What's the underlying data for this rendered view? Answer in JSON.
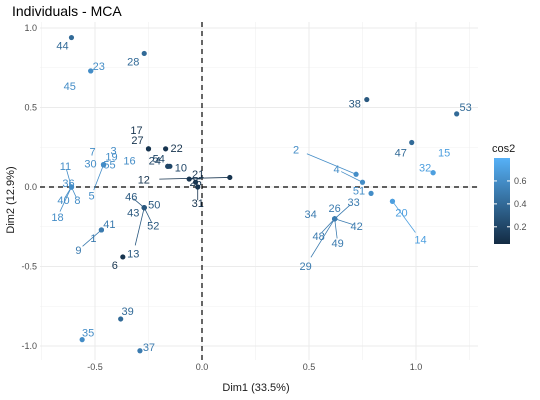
{
  "chart_data": {
    "type": "scatter",
    "title": "Individuals - MCA",
    "xlabel": "Dim1 (33.5%)",
    "ylabel": "Dim2 (12.9%)",
    "xlim": [
      -0.7,
      1.2
    ],
    "ylim": [
      -1.05,
      1.0
    ],
    "xticks": [
      -0.5,
      0.0,
      0.5,
      1.0
    ],
    "xtick_labels": [
      "-0.5",
      "0.0",
      "0.5",
      "1.0"
    ],
    "yticks": [
      -1.0,
      -0.5,
      0.0,
      0.5,
      1.0
    ],
    "ytick_labels": [
      "-1.0",
      "-0.5",
      "0.0",
      "0.5",
      "1.0"
    ],
    "grid": true,
    "reference_lines": {
      "x": 0,
      "y": 0,
      "style": "dashed"
    },
    "legend": {
      "title": "cos2",
      "placement": "right",
      "scale": [
        0.05,
        0.8
      ],
      "ticks": [
        0.2,
        0.4,
        0.6
      ],
      "tick_labels": [
        "0.2",
        "0.4",
        "0.6"
      ],
      "low_color": "#132B43",
      "high_color": "#56B1F7"
    },
    "points": [
      {
        "label": "1",
        "x": -0.47,
        "y": -0.27,
        "cos2": 0.5
      },
      {
        "label": "2",
        "x": 0.72,
        "y": 0.08,
        "cos2": 0.6
      },
      {
        "label": "3",
        "x": -0.46,
        "y": 0.14,
        "cos2": 0.6
      },
      {
        "label": "4",
        "x": 0.75,
        "y": 0.03,
        "cos2": 0.6
      },
      {
        "label": "5",
        "x": -0.46,
        "y": 0.14,
        "cos2": 0.6
      },
      {
        "label": "6",
        "x": -0.37,
        "y": -0.44,
        "cos2": 0.1
      },
      {
        "label": "7",
        "x": -0.46,
        "y": 0.14,
        "cos2": 0.6
      },
      {
        "label": "8",
        "x": -0.61,
        "y": 0.0,
        "cos2": 0.6
      },
      {
        "label": "9",
        "x": -0.47,
        "y": -0.27,
        "cos2": 0.5
      },
      {
        "label": "10",
        "x": -0.15,
        "y": 0.13,
        "cos2": 0.2
      },
      {
        "label": "11",
        "x": -0.61,
        "y": 0.0,
        "cos2": 0.6
      },
      {
        "label": "12",
        "x": 0.13,
        "y": 0.06,
        "cos2": 0.1
      },
      {
        "label": "13",
        "x": -0.27,
        "y": -0.13,
        "cos2": 0.3
      },
      {
        "label": "14",
        "x": 0.89,
        "y": -0.09,
        "cos2": 0.7
      },
      {
        "label": "15",
        "x": 1.08,
        "y": 0.09,
        "cos2": 0.7
      },
      {
        "label": "16",
        "x": -0.46,
        "y": 0.14,
        "cos2": 0.6
      },
      {
        "label": "17",
        "x": -0.25,
        "y": 0.24,
        "cos2": 0.1
      },
      {
        "label": "18",
        "x": -0.61,
        "y": 0.0,
        "cos2": 0.6
      },
      {
        "label": "19",
        "x": -0.46,
        "y": 0.14,
        "cos2": 0.6
      },
      {
        "label": "20",
        "x": 0.89,
        "y": -0.09,
        "cos2": 0.7
      },
      {
        "label": "21",
        "x": -0.06,
        "y": 0.05,
        "cos2": 0.1
      },
      {
        "label": "22",
        "x": -0.17,
        "y": 0.24,
        "cos2": 0.1
      },
      {
        "label": "23",
        "x": -0.52,
        "y": 0.73,
        "cos2": 0.6
      },
      {
        "label": "24",
        "x": -0.16,
        "y": 0.13,
        "cos2": 0.2
      },
      {
        "label": "25",
        "x": -0.03,
        "y": 0.03,
        "cos2": 0.1
      },
      {
        "label": "26",
        "x": 0.62,
        "y": -0.2,
        "cos2": 0.5
      },
      {
        "label": "27",
        "x": -0.25,
        "y": 0.24,
        "cos2": 0.1
      },
      {
        "label": "28",
        "x": -0.27,
        "y": 0.84,
        "cos2": 0.4
      },
      {
        "label": "29",
        "x": 0.62,
        "y": -0.2,
        "cos2": 0.5
      },
      {
        "label": "30",
        "x": -0.46,
        "y": 0.14,
        "cos2": 0.6
      },
      {
        "label": "31",
        "x": -0.02,
        "y": 0.0,
        "cos2": 0.1
      },
      {
        "label": "32",
        "x": 1.08,
        "y": 0.09,
        "cos2": 0.7
      },
      {
        "label": "33",
        "x": 0.62,
        "y": -0.2,
        "cos2": 0.5
      },
      {
        "label": "34",
        "x": 0.62,
        "y": -0.2,
        "cos2": 0.5
      },
      {
        "label": "35",
        "x": -0.56,
        "y": -0.96,
        "cos2": 0.6
      },
      {
        "label": "36",
        "x": -0.61,
        "y": 0.0,
        "cos2": 0.6
      },
      {
        "label": "37",
        "x": -0.29,
        "y": -1.03,
        "cos2": 0.5
      },
      {
        "label": "38",
        "x": 0.77,
        "y": 0.55,
        "cos2": 0.3
      },
      {
        "label": "39",
        "x": -0.38,
        "y": -0.83,
        "cos2": 0.4
      },
      {
        "label": "40",
        "x": -0.61,
        "y": 0.0,
        "cos2": 0.6
      },
      {
        "label": "41",
        "x": -0.47,
        "y": -0.27,
        "cos2": 0.5
      },
      {
        "label": "42",
        "x": 0.62,
        "y": -0.2,
        "cos2": 0.5
      },
      {
        "label": "43",
        "x": -0.27,
        "y": -0.13,
        "cos2": 0.3
      },
      {
        "label": "44",
        "x": -0.61,
        "y": 0.94,
        "cos2": 0.4
      },
      {
        "label": "45",
        "x": -0.52,
        "y": 0.73,
        "cos2": 0.6
      },
      {
        "label": "46",
        "x": -0.27,
        "y": -0.13,
        "cos2": 0.3
      },
      {
        "label": "47",
        "x": 0.98,
        "y": 0.28,
        "cos2": 0.4
      },
      {
        "label": "48",
        "x": 0.62,
        "y": -0.2,
        "cos2": 0.5
      },
      {
        "label": "49",
        "x": 0.62,
        "y": -0.2,
        "cos2": 0.5
      },
      {
        "label": "50",
        "x": -0.27,
        "y": -0.13,
        "cos2": 0.3
      },
      {
        "label": "51",
        "x": 0.79,
        "y": -0.04,
        "cos2": 0.6
      },
      {
        "label": "52",
        "x": -0.27,
        "y": -0.13,
        "cos2": 0.3
      },
      {
        "label": "53",
        "x": 1.19,
        "y": 0.46,
        "cos2": 0.4
      },
      {
        "label": "54",
        "x": -0.16,
        "y": 0.13,
        "cos2": 0.2
      },
      {
        "label": "55",
        "x": -0.46,
        "y": 0.14,
        "cos2": 0.6
      }
    ]
  }
}
